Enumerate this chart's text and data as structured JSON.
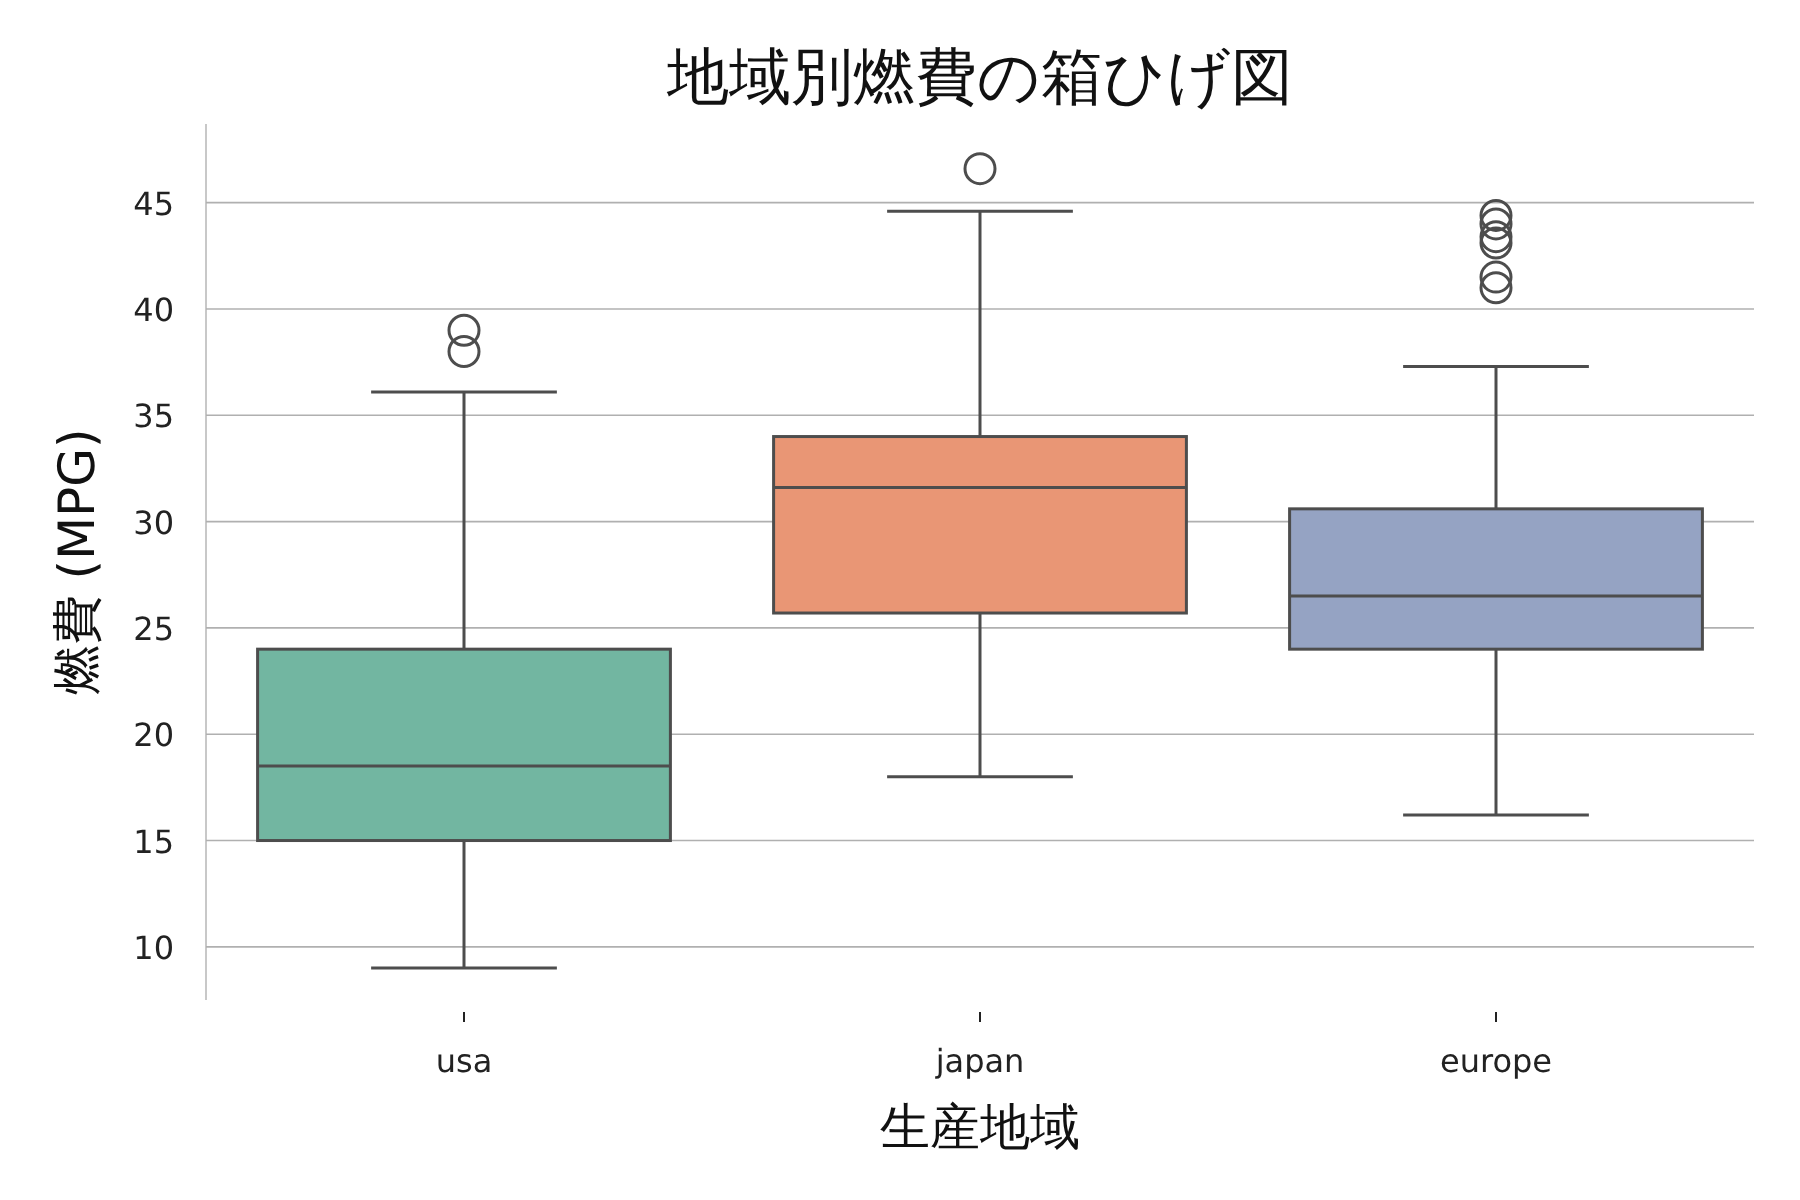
{
  "chart_data": {
    "type": "box",
    "title": "地域別燃費の箱ひげ図",
    "xlabel": "生産地域",
    "ylabel": "燃費 (MPG)",
    "categories": [
      "usa",
      "japan",
      "europe"
    ],
    "colors": [
      "#72b6a1",
      "#e99675",
      "#95a3c3"
    ],
    "boxes": [
      {
        "low": 9.0,
        "q1": 15.0,
        "median": 18.5,
        "q3": 24.0,
        "high": 36.1,
        "outliers": [
          39.0,
          38.0
        ]
      },
      {
        "low": 18.0,
        "q1": 25.7,
        "median": 31.6,
        "q3": 34.0,
        "high": 44.6,
        "outliers": [
          46.6
        ]
      },
      {
        "low": 16.2,
        "q1": 24.0,
        "median": 26.5,
        "q3": 30.6,
        "high": 37.3,
        "outliers": [
          44.4,
          44.0,
          43.4,
          43.1,
          41.5,
          41.0
        ]
      }
    ],
    "ylim": [
      7.5,
      48.7
    ],
    "yticks": [
      10,
      15,
      20,
      25,
      30,
      35,
      40,
      45
    ],
    "grid": "y"
  }
}
